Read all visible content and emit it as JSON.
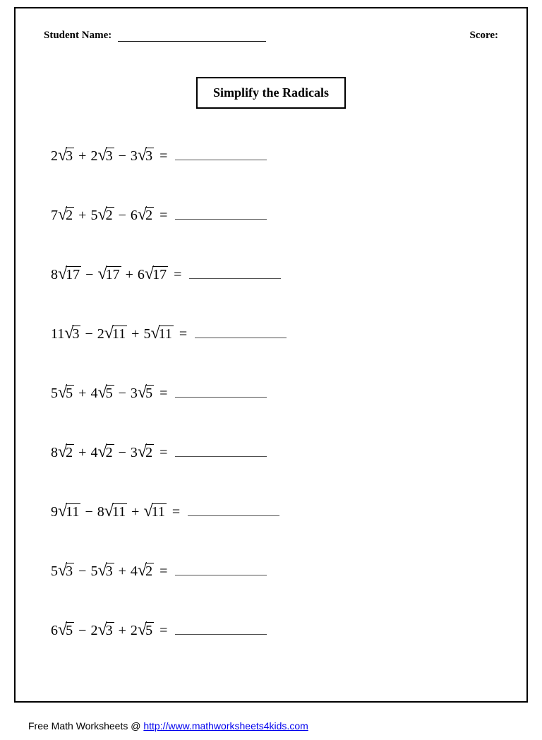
{
  "header": {
    "name_label": "Student Name:",
    "score_label": "Score:"
  },
  "title": "Simplify the Radicals",
  "problems": [
    {
      "terms": [
        {
          "coef": "2",
          "rad": "3"
        },
        {
          "op": "+",
          "coef": "2",
          "rad": "3"
        },
        {
          "op": "−",
          "coef": "3",
          "rad": "3"
        }
      ]
    },
    {
      "terms": [
        {
          "coef": "7",
          "rad": "2"
        },
        {
          "op": "+",
          "coef": "5",
          "rad": "2"
        },
        {
          "op": "−",
          "coef": "6",
          "rad": "2"
        }
      ]
    },
    {
      "terms": [
        {
          "coef": "8",
          "rad": "17"
        },
        {
          "op": "−",
          "coef": "",
          "rad": "17"
        },
        {
          "op": "+",
          "coef": "6",
          "rad": "17"
        }
      ]
    },
    {
      "terms": [
        {
          "coef": "11",
          "rad": "3"
        },
        {
          "op": "−",
          "coef": "2",
          "rad": "11"
        },
        {
          "op": "+",
          "coef": "5",
          "rad": "11"
        }
      ]
    },
    {
      "terms": [
        {
          "coef": "5",
          "rad": "5"
        },
        {
          "op": "+",
          "coef": "4",
          "rad": "5"
        },
        {
          "op": "−",
          "coef": "3",
          "rad": "5"
        }
      ]
    },
    {
      "terms": [
        {
          "coef": "8",
          "rad": "2"
        },
        {
          "op": "+",
          "coef": "4",
          "rad": "2"
        },
        {
          "op": "−",
          "coef": "3",
          "rad": "2"
        }
      ]
    },
    {
      "terms": [
        {
          "coef": "9",
          "rad": "11"
        },
        {
          "op": "−",
          "coef": "8",
          "rad": "11"
        },
        {
          "op": "+",
          "coef": "",
          "rad": "11"
        }
      ]
    },
    {
      "terms": [
        {
          "coef": "5",
          "rad": "3"
        },
        {
          "op": "−",
          "coef": "5",
          "rad": "3"
        },
        {
          "op": "+",
          "coef": "4",
          "rad": "2"
        }
      ]
    },
    {
      "terms": [
        {
          "coef": "6",
          "rad": "5"
        },
        {
          "op": "−",
          "coef": "2",
          "rad": "3"
        },
        {
          "op": "+",
          "coef": "2",
          "rad": "5"
        }
      ]
    }
  ],
  "equals": "=",
  "footer": {
    "prefix": "Free Math Worksheets @ ",
    "link_text": "http://www.mathworksheets4kids.com"
  },
  "style": {
    "page_border_color": "#000000",
    "text_color": "#000000",
    "link_color": "#0000ee",
    "background_color": "#ffffff",
    "title_fontsize": 18,
    "problem_fontsize": 20,
    "header_fontsize": 15,
    "footer_fontsize": 14,
    "answer_line_width": 130,
    "name_line_width": 210
  }
}
